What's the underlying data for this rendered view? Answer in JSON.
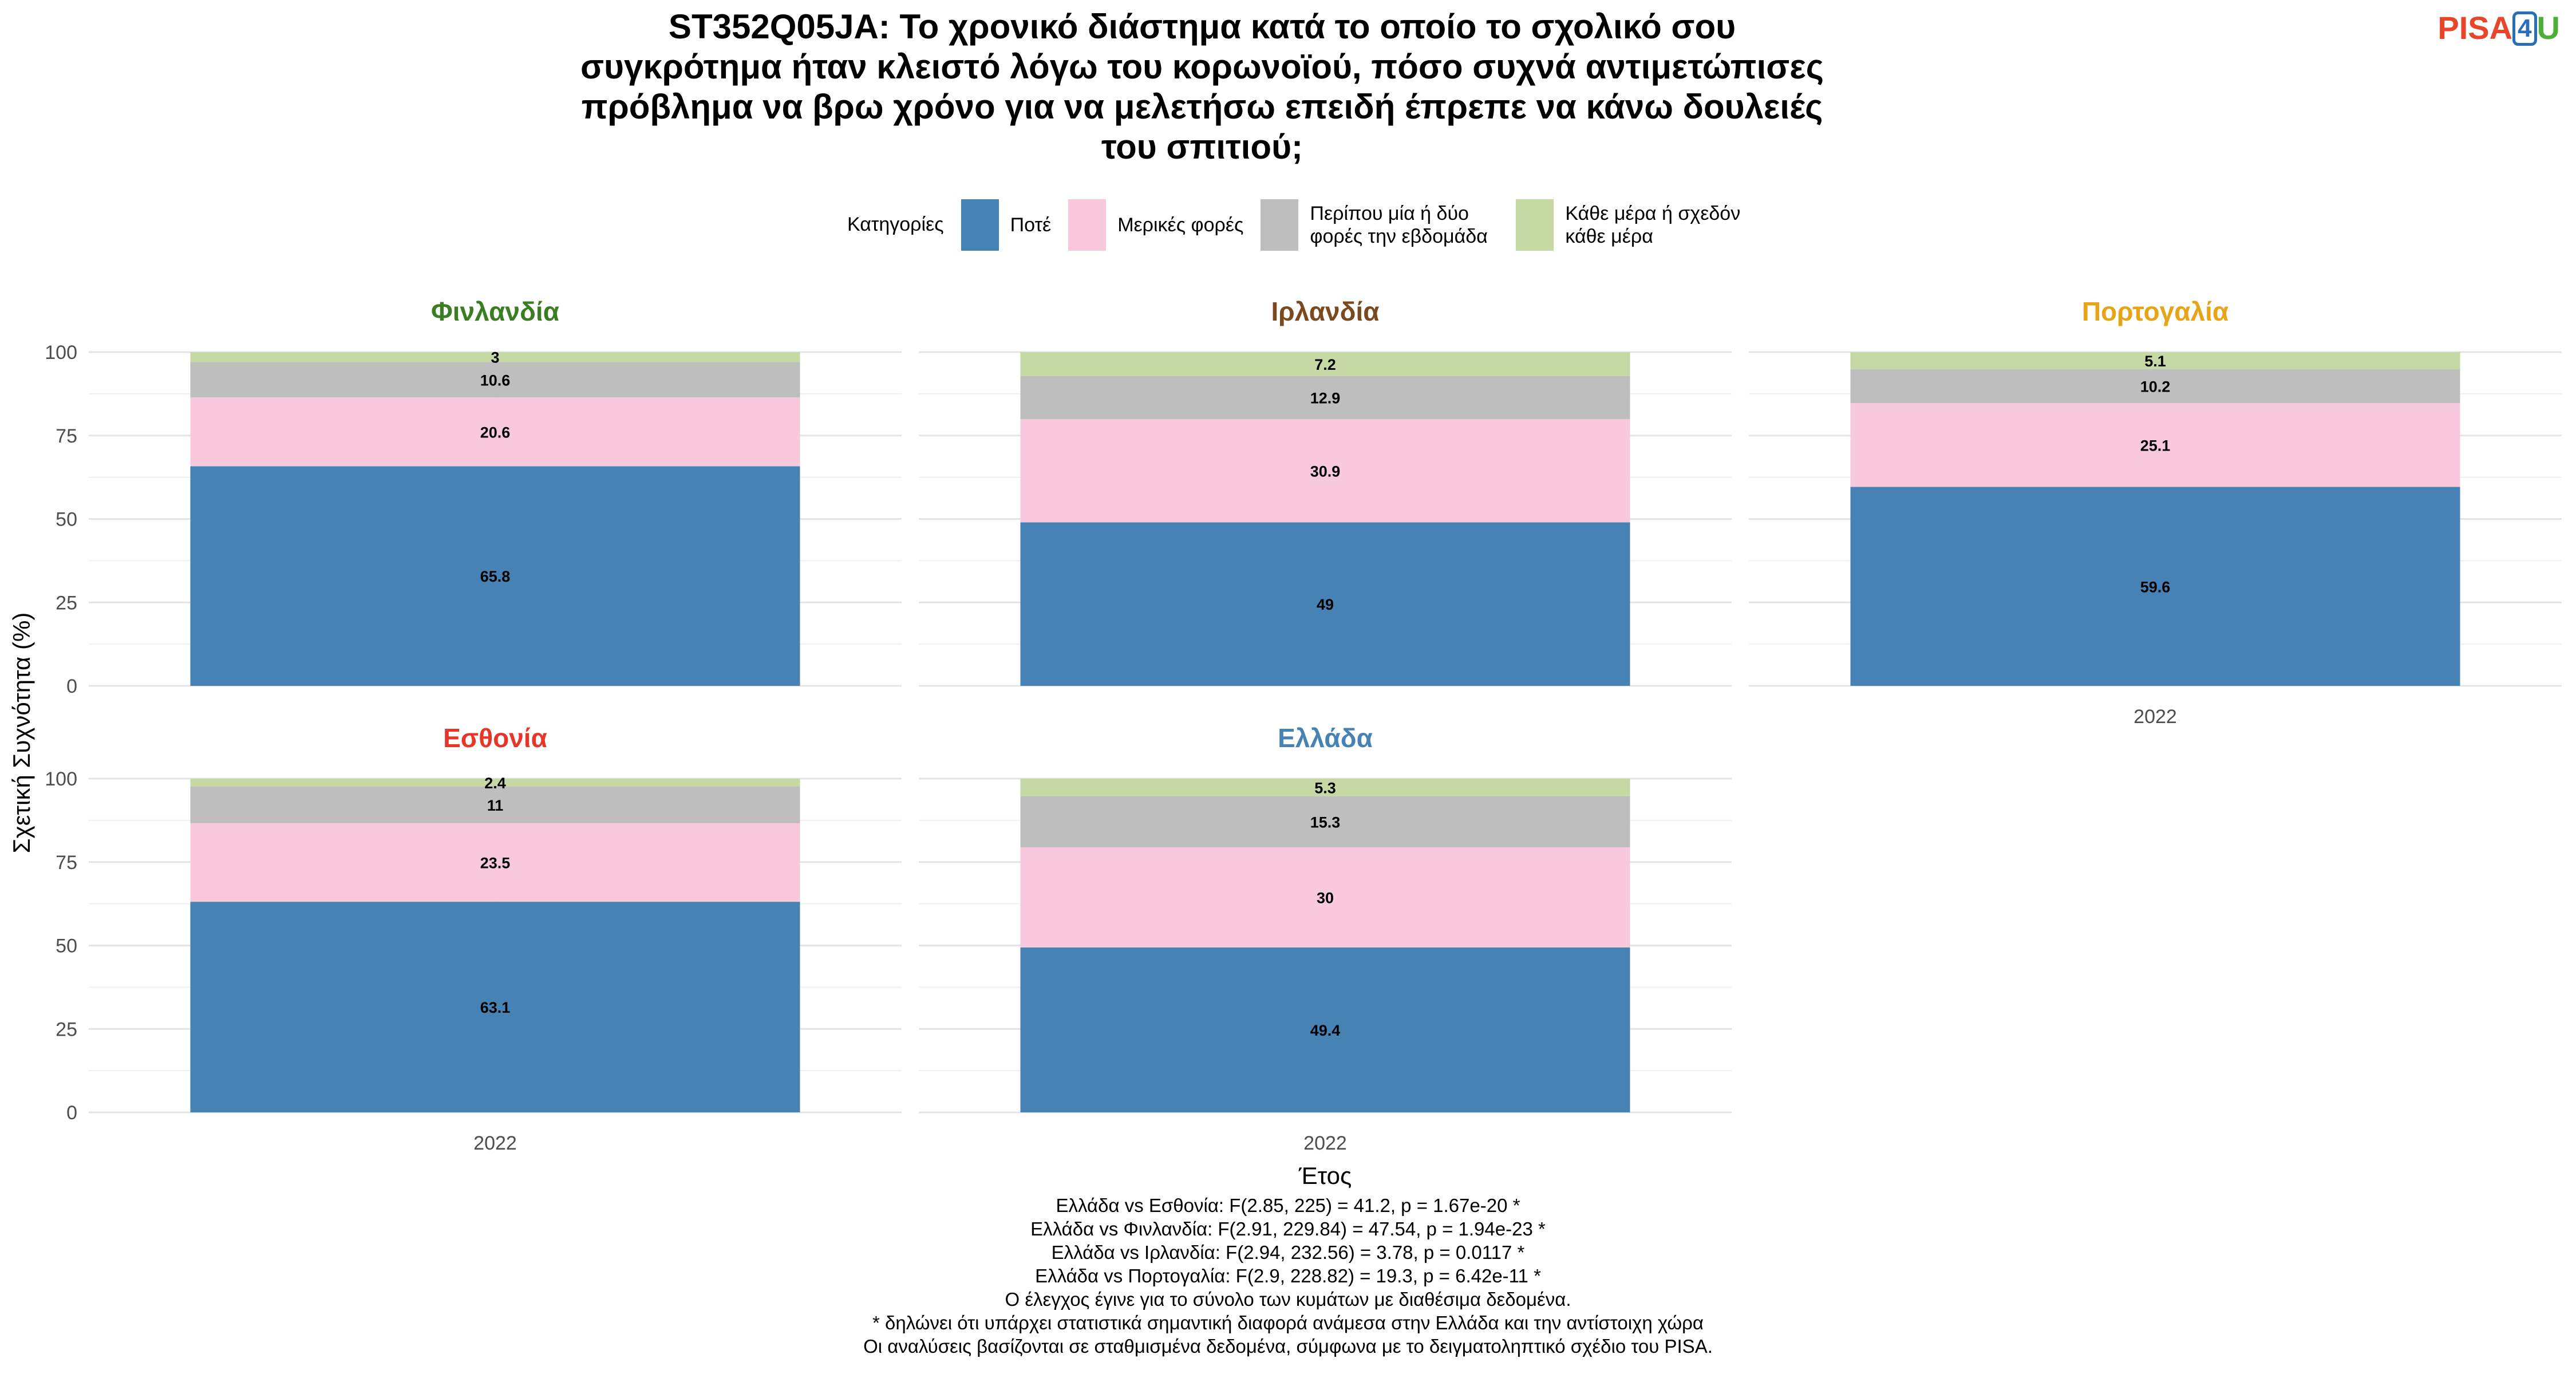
{
  "title_lines": [
    "ST352Q05JA: Το χρονικό διάστημα κατά το οποίο το σχολικό σου",
    "συγκρότημα ήταν κλειστό λόγω του κορωνοϊού, πόσο συχνά αντιμετώπισες",
    "πρόβλημα να βρω χρόνο για να μελετήσω επειδή έπρεπε να κάνω δουλειές",
    "του σπιτιού;"
  ],
  "logo": {
    "part1": "PISA",
    "part2": "4",
    "part3": "U"
  },
  "legend": {
    "title": "Κατηγορίες",
    "items": [
      {
        "label": "Ποτέ",
        "color": "#4682b4"
      },
      {
        "label": "Μερικές φορές",
        "color": "#f8c8dc"
      },
      {
        "label": "Περίπου μία ή δύο φορές την εβδομάδα",
        "color": "#bebebe"
      },
      {
        "label": "Κάθε μέρα ή σχεδόν κάθε μέρα",
        "color": "#c6d9a4"
      }
    ]
  },
  "chart_data": {
    "type": "bar",
    "stacked": true,
    "xlabel": "Έτος",
    "ylabel": "Σχετική Συχνότητα (%)",
    "ylim": [
      0,
      100
    ],
    "yticks": [
      0,
      25,
      50,
      75,
      100
    ],
    "categories": [
      "2022"
    ],
    "series_names": [
      "Ποτέ",
      "Μερικές φορές",
      "Περίπου μία ή δύο φορές την εβδομάδα",
      "Κάθε μέρα ή σχεδόν κάθε μέρα"
    ],
    "panels": [
      {
        "country": "Φινλανδία",
        "color": "#3a7d22",
        "year": "2022",
        "values": [
          65.8,
          20.6,
          10.6,
          3
        ],
        "labels": [
          "65.8",
          "20.6",
          "10.6",
          "3"
        ],
        "show_xtick": false
      },
      {
        "country": "Ιρλανδία",
        "color": "#7a4a1e",
        "year": "2022",
        "values": [
          49,
          30.9,
          12.9,
          7.2
        ],
        "labels": [
          "49",
          "30.9",
          "12.9",
          "7.2"
        ],
        "show_xtick": false
      },
      {
        "country": "Πορτογαλία",
        "color": "#e8a317",
        "year": "2022",
        "values": [
          59.6,
          25.1,
          10.2,
          5.1
        ],
        "labels": [
          "59.6",
          "25.1",
          "10.2",
          "5.1"
        ],
        "show_xtick": true
      },
      {
        "country": "Εσθονία",
        "color": "#e8352a",
        "year": "2022",
        "values": [
          63.1,
          23.5,
          11,
          2.4
        ],
        "labels": [
          "63.1",
          "23.5",
          "11",
          "2.4"
        ],
        "show_xtick": true
      },
      {
        "country": "Ελλάδα",
        "color": "#4682b4",
        "year": "2022",
        "values": [
          49.4,
          30,
          15.3,
          5.3
        ],
        "labels": [
          "49.4",
          "30",
          "15.3",
          "5.3"
        ],
        "show_xtick": true
      }
    ]
  },
  "footnotes": [
    "Ελλάδα vs Εσθονία: F(2.85, 225) = 41.2, p = 1.67e-20 *",
    "Ελλάδα vs Φινλανδία: F(2.91, 229.84) = 47.54, p = 1.94e-23 *",
    "Ελλάδα vs Ιρλανδία: F(2.94, 232.56) = 3.78, p = 0.0117 *",
    "Ελλάδα vs Πορτογαλία: F(2.9, 228.82) = 19.3, p = 6.42e-11 *",
    "Ο έλεγχος έγινε για το σύνολο των κυμάτων με διαθέσιμα δεδομένα.",
    "* δηλώνει ότι υπάρχει στατιστικά σημαντική διαφορά ανάμεσα στην Ελλάδα και την αντίστοιχη χώρα",
    "Οι αναλύσεις βασίζονται σε σταθμισμένα δεδομένα, σύμφωνα με το δειγματοληπτικό σχέδιο του PISA."
  ]
}
